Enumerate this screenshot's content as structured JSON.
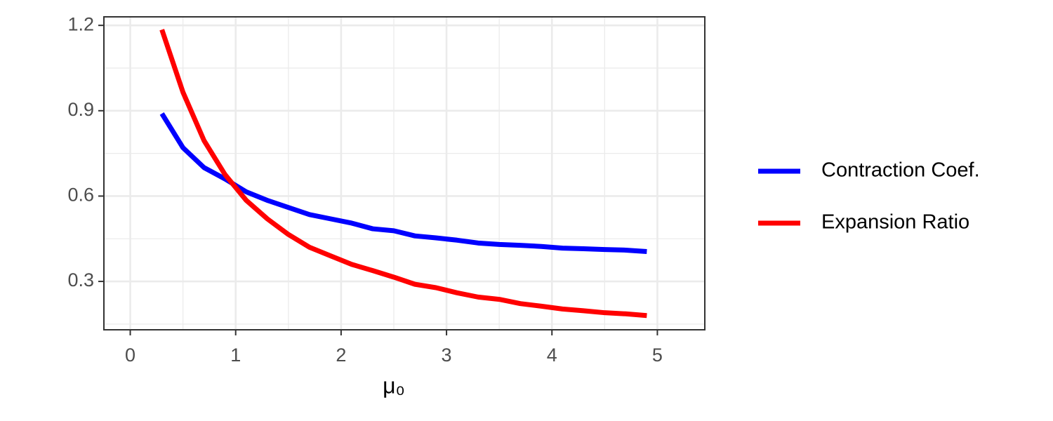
{
  "chart_data": {
    "type": "line",
    "x_label": "μ₀",
    "x": [
      0.3,
      0.5,
      0.7,
      0.9,
      1.1,
      1.3,
      1.5,
      1.7,
      1.9,
      2.1,
      2.3,
      2.5,
      2.7,
      2.9,
      3.1,
      3.3,
      3.5,
      3.7,
      3.9,
      4.1,
      4.3,
      4.5,
      4.7,
      4.9
    ],
    "series": [
      {
        "name": "Contraction Coef.",
        "color": "#0000ff",
        "values": [
          0.89,
          0.77,
          0.7,
          0.66,
          0.615,
          0.585,
          0.56,
          0.535,
          0.52,
          0.505,
          0.485,
          0.478,
          0.46,
          0.453,
          0.445,
          0.435,
          0.43,
          0.427,
          0.423,
          0.417,
          0.415,
          0.412,
          0.41,
          0.405
        ]
      },
      {
        "name": "Expansion Ratio",
        "color": "#ff0000",
        "values": [
          1.185,
          0.965,
          0.795,
          0.675,
          0.585,
          0.52,
          0.465,
          0.42,
          0.39,
          0.36,
          0.338,
          0.315,
          0.29,
          0.278,
          0.26,
          0.245,
          0.237,
          0.222,
          0.213,
          0.203,
          0.197,
          0.19,
          0.186,
          0.18
        ]
      }
    ],
    "xlim": [
      -0.25,
      5.45
    ],
    "xticks": [
      0,
      1,
      2,
      3,
      4,
      5
    ],
    "ylim": [
      0.13,
      1.23
    ],
    "yticks": [
      0.3,
      0.6,
      0.9,
      1.2
    ],
    "grid": true,
    "legend": "right"
  }
}
